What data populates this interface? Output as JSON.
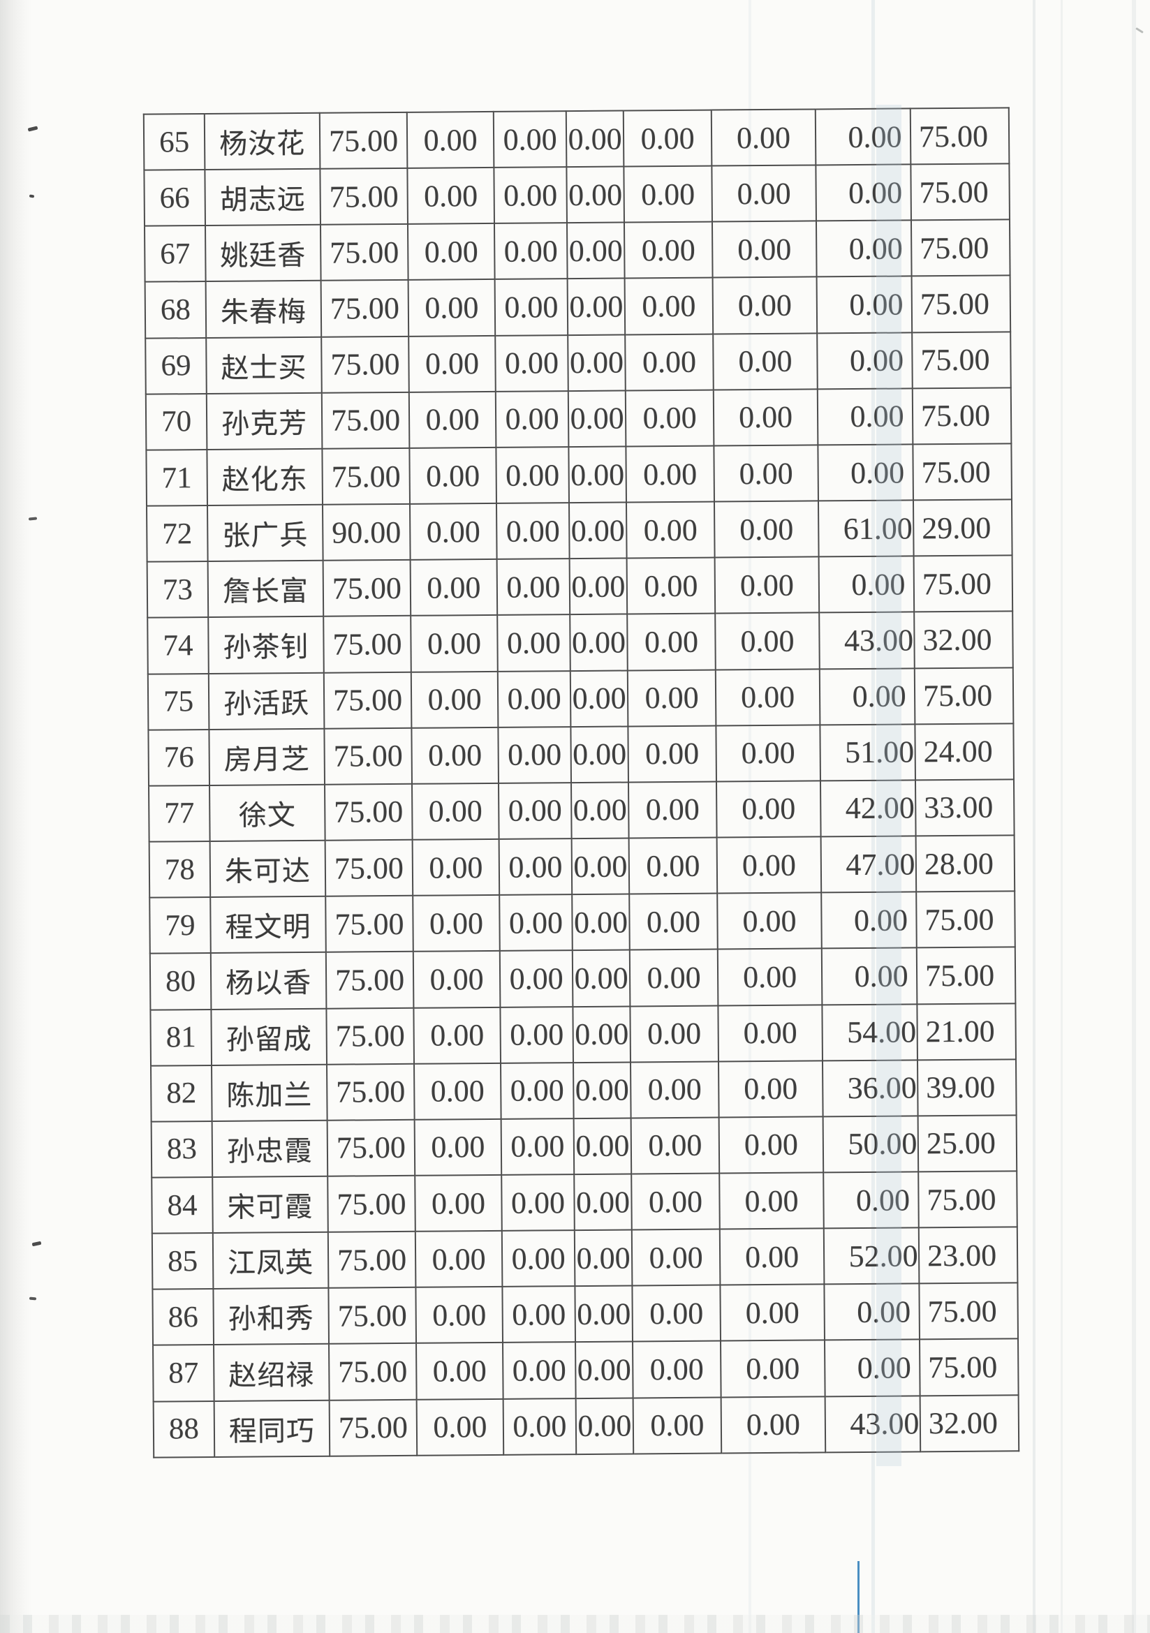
{
  "document": {
    "type": "scanned-payment-roster-page",
    "colors": {
      "paper": "#fbfbf9",
      "grid_line": "#4d4d4d",
      "ink": "#3e3e3e",
      "pen_line_blue": "#4a8ec2"
    }
  },
  "table": {
    "columns": [
      "row-number",
      "name",
      "amount-1",
      "amount-2",
      "amount-3",
      "amount-4",
      "amount-5",
      "amount-6",
      "amount-7",
      "amount-8"
    ],
    "rows": [
      {
        "no": "65",
        "name": "杨汝花",
        "values": [
          "75.00",
          "0.00",
          "0.00",
          "0.00",
          "0.00",
          "0.00",
          "0.00",
          "75.00"
        ]
      },
      {
        "no": "66",
        "name": "胡志远",
        "values": [
          "75.00",
          "0.00",
          "0.00",
          "0.00",
          "0.00",
          "0.00",
          "0.00",
          "75.00"
        ]
      },
      {
        "no": "67",
        "name": "姚廷香",
        "values": [
          "75.00",
          "0.00",
          "0.00",
          "0.00",
          "0.00",
          "0.00",
          "0.00",
          "75.00"
        ]
      },
      {
        "no": "68",
        "name": "朱春梅",
        "values": [
          "75.00",
          "0.00",
          "0.00",
          "0.00",
          "0.00",
          "0.00",
          "0.00",
          "75.00"
        ]
      },
      {
        "no": "69",
        "name": "赵士买",
        "values": [
          "75.00",
          "0.00",
          "0.00",
          "0.00",
          "0.00",
          "0.00",
          "0.00",
          "75.00"
        ]
      },
      {
        "no": "70",
        "name": "孙克芳",
        "values": [
          "75.00",
          "0.00",
          "0.00",
          "0.00",
          "0.00",
          "0.00",
          "0.00",
          "75.00"
        ]
      },
      {
        "no": "71",
        "name": "赵化东",
        "values": [
          "75.00",
          "0.00",
          "0.00",
          "0.00",
          "0.00",
          "0.00",
          "0.00",
          "75.00"
        ]
      },
      {
        "no": "72",
        "name": "张广兵",
        "values": [
          "90.00",
          "0.00",
          "0.00",
          "0.00",
          "0.00",
          "0.00",
          "61.00",
          "29.00"
        ]
      },
      {
        "no": "73",
        "name": "詹长富",
        "values": [
          "75.00",
          "0.00",
          "0.00",
          "0.00",
          "0.00",
          "0.00",
          "0.00",
          "75.00"
        ]
      },
      {
        "no": "74",
        "name": "孙茶钊",
        "values": [
          "75.00",
          "0.00",
          "0.00",
          "0.00",
          "0.00",
          "0.00",
          "43.00",
          "32.00"
        ]
      },
      {
        "no": "75",
        "name": "孙活跃",
        "values": [
          "75.00",
          "0.00",
          "0.00",
          "0.00",
          "0.00",
          "0.00",
          "0.00",
          "75.00"
        ]
      },
      {
        "no": "76",
        "name": "房月芝",
        "values": [
          "75.00",
          "0.00",
          "0.00",
          "0.00",
          "0.00",
          "0.00",
          "51.00",
          "24.00"
        ]
      },
      {
        "no": "77",
        "name": "徐文",
        "values": [
          "75.00",
          "0.00",
          "0.00",
          "0.00",
          "0.00",
          "0.00",
          "42.00",
          "33.00"
        ]
      },
      {
        "no": "78",
        "name": "朱可达",
        "values": [
          "75.00",
          "0.00",
          "0.00",
          "0.00",
          "0.00",
          "0.00",
          "47.00",
          "28.00"
        ]
      },
      {
        "no": "79",
        "name": "程文明",
        "values": [
          "75.00",
          "0.00",
          "0.00",
          "0.00",
          "0.00",
          "0.00",
          "0.00",
          "75.00"
        ]
      },
      {
        "no": "80",
        "name": "杨以香",
        "values": [
          "75.00",
          "0.00",
          "0.00",
          "0.00",
          "0.00",
          "0.00",
          "0.00",
          "75.00"
        ]
      },
      {
        "no": "81",
        "name": "孙留成",
        "values": [
          "75.00",
          "0.00",
          "0.00",
          "0.00",
          "0.00",
          "0.00",
          "54.00",
          "21.00"
        ]
      },
      {
        "no": "82",
        "name": "陈加兰",
        "values": [
          "75.00",
          "0.00",
          "0.00",
          "0.00",
          "0.00",
          "0.00",
          "36.00",
          "39.00"
        ]
      },
      {
        "no": "83",
        "name": "孙忠霞",
        "values": [
          "75.00",
          "0.00",
          "0.00",
          "0.00",
          "0.00",
          "0.00",
          "50.00",
          "25.00"
        ]
      },
      {
        "no": "84",
        "name": "宋可霞",
        "values": [
          "75.00",
          "0.00",
          "0.00",
          "0.00",
          "0.00",
          "0.00",
          "0.00",
          "75.00"
        ]
      },
      {
        "no": "85",
        "name": "江凤英",
        "values": [
          "75.00",
          "0.00",
          "0.00",
          "0.00",
          "0.00",
          "0.00",
          "52.00",
          "23.00"
        ]
      },
      {
        "no": "86",
        "name": "孙和秀",
        "values": [
          "75.00",
          "0.00",
          "0.00",
          "0.00",
          "0.00",
          "0.00",
          "0.00",
          "75.00"
        ]
      },
      {
        "no": "87",
        "name": "赵绍禄",
        "values": [
          "75.00",
          "0.00",
          "0.00",
          "0.00",
          "0.00",
          "0.00",
          "0.00",
          "75.00"
        ]
      },
      {
        "no": "88",
        "name": "程同巧",
        "values": [
          "75.00",
          "0.00",
          "0.00",
          "0.00",
          "0.00",
          "0.00",
          "43.00",
          "32.00"
        ]
      }
    ]
  }
}
